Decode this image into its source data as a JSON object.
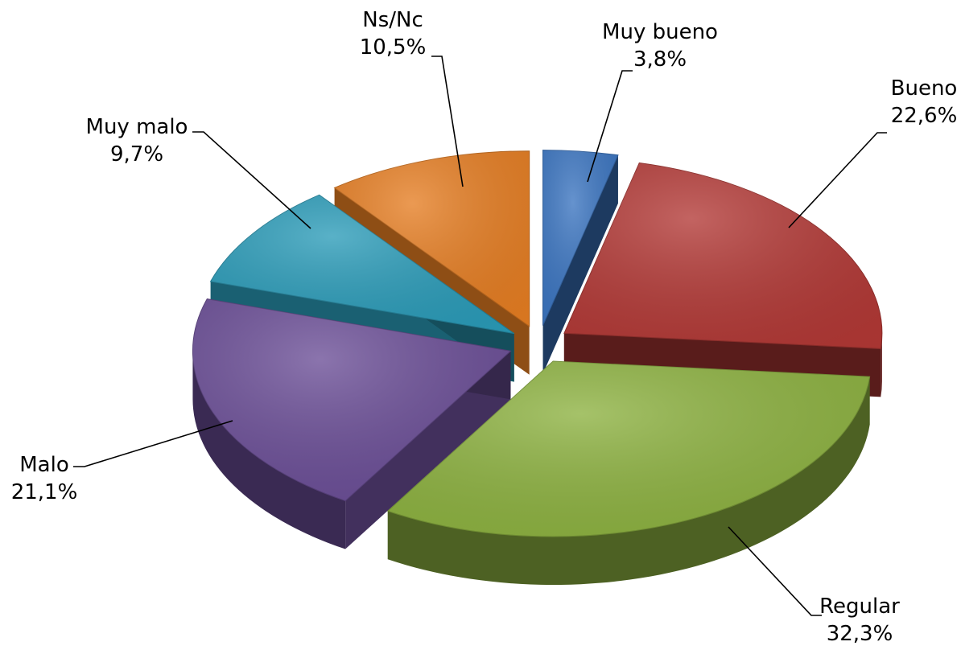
{
  "chart_data": {
    "type": "pie",
    "title": "",
    "categories": [
      "Muy bueno",
      "Bueno",
      "Regular",
      "Malo",
      "Muy malo",
      "Ns/Nc"
    ],
    "values": [
      3.8,
      22.6,
      32.3,
      21.1,
      9.7,
      10.5
    ],
    "value_labels": [
      "3,8%",
      "22,6%",
      "32,3%",
      "21,1%",
      "9,7%",
      "10,5%"
    ],
    "unit": "%",
    "style": "3d-exploded",
    "colors": [
      "#3a74c0",
      "#b23835",
      "#8cb13f",
      "#6a4d96",
      "#2a9bb8",
      "#e57d22"
    ],
    "legend": "none"
  }
}
